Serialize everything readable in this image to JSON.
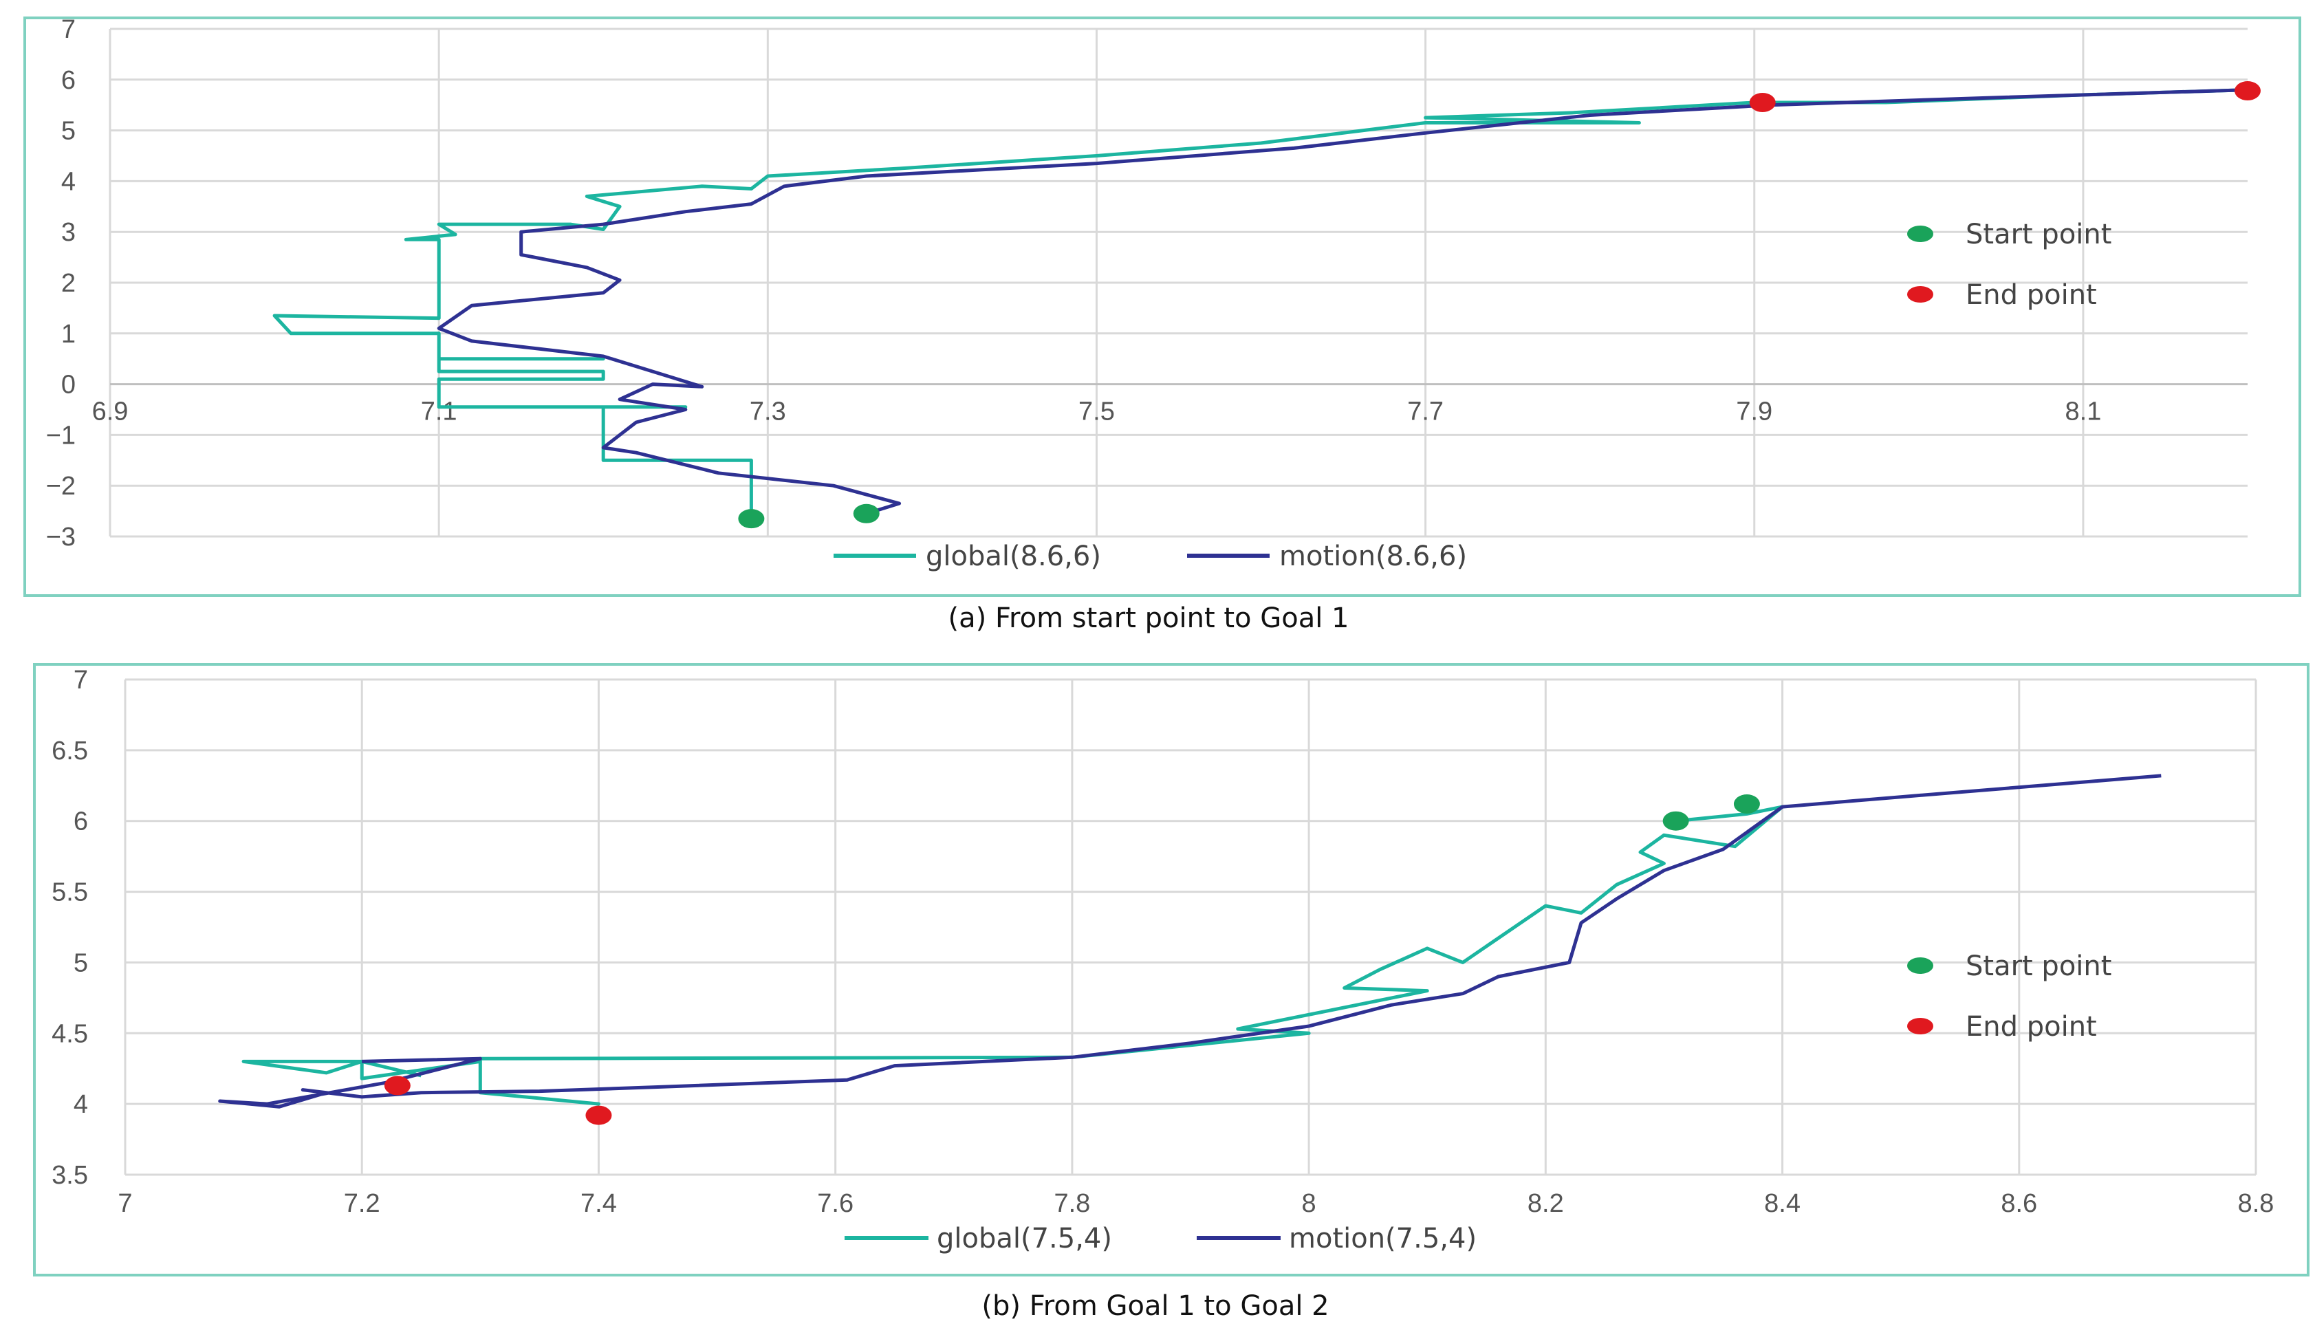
{
  "colors": {
    "global": "#1cb5a0",
    "motion": "#2e3192",
    "start": "#1aa35a",
    "end": "#e0191f",
    "frame": "#7fd1c0"
  },
  "chart_data": [
    {
      "type": "line",
      "caption": "(a) From start point to Goal 1",
      "xlim": [
        6.9,
        8.2
      ],
      "ylim": [
        -3,
        7
      ],
      "xticks": [
        "6.9",
        "7.1",
        "7.3",
        "7.5",
        "7.7",
        "7.9",
        "8.1"
      ],
      "yticks": [
        "7",
        "6",
        "5",
        "4",
        "3",
        "2",
        "1",
        "0",
        "−1",
        "−2",
        "−3"
      ],
      "grid": true,
      "legend_position": "right",
      "marker_legend": [
        {
          "label": "Start point",
          "color": "#1aa35a"
        },
        {
          "label": "End point",
          "color": "#e0191f"
        }
      ],
      "series": [
        {
          "name": "global(8.6,6)",
          "points": [
            [
              7.29,
              -2.65
            ],
            [
              7.29,
              -1.5
            ],
            [
              7.2,
              -1.5
            ],
            [
              7.2,
              -0.45
            ],
            [
              7.25,
              -0.45
            ],
            [
              7.1,
              -0.45
            ],
            [
              7.1,
              0.1
            ],
            [
              7.2,
              0.1
            ],
            [
              7.2,
              0.25
            ],
            [
              7.1,
              0.25
            ],
            [
              7.1,
              0.5
            ],
            [
              7.2,
              0.5
            ],
            [
              7.1,
              0.5
            ],
            [
              7.1,
              1.0
            ],
            [
              7.01,
              1.0
            ],
            [
              7.0,
              1.35
            ],
            [
              7.1,
              1.3
            ],
            [
              7.1,
              2.85
            ],
            [
              7.08,
              2.85
            ],
            [
              7.11,
              2.95
            ],
            [
              7.1,
              3.15
            ],
            [
              7.18,
              3.15
            ],
            [
              7.2,
              3.05
            ],
            [
              7.21,
              3.5
            ],
            [
              7.19,
              3.7
            ],
            [
              7.26,
              3.9
            ],
            [
              7.29,
              3.85
            ],
            [
              7.3,
              4.1
            ],
            [
              7.38,
              4.25
            ],
            [
              7.5,
              4.5
            ],
            [
              7.6,
              4.75
            ],
            [
              7.7,
              5.15
            ],
            [
              7.83,
              5.15
            ],
            [
              7.7,
              5.25
            ],
            [
              7.79,
              5.35
            ],
            [
              7.9,
              5.55
            ],
            [
              7.98,
              5.55
            ],
            [
              8.1,
              5.7
            ],
            [
              8.2,
              5.8
            ]
          ]
        },
        {
          "name": "motion(8.6,6)",
          "points": [
            [
              7.36,
              -2.55
            ],
            [
              7.38,
              -2.35
            ],
            [
              7.34,
              -2.0
            ],
            [
              7.27,
              -1.75
            ],
            [
              7.22,
              -1.35
            ],
            [
              7.2,
              -1.25
            ],
            [
              7.22,
              -0.75
            ],
            [
              7.25,
              -0.5
            ],
            [
              7.21,
              -0.3
            ],
            [
              7.23,
              0.0
            ],
            [
              7.26,
              -0.05
            ],
            [
              7.24,
              0.15
            ],
            [
              7.2,
              0.55
            ],
            [
              7.12,
              0.85
            ],
            [
              7.1,
              1.1
            ],
            [
              7.12,
              1.55
            ],
            [
              7.2,
              1.8
            ],
            [
              7.21,
              2.05
            ],
            [
              7.19,
              2.3
            ],
            [
              7.15,
              2.55
            ],
            [
              7.15,
              3.0
            ],
            [
              7.2,
              3.15
            ],
            [
              7.25,
              3.4
            ],
            [
              7.29,
              3.55
            ],
            [
              7.31,
              3.9
            ],
            [
              7.36,
              4.1
            ],
            [
              7.5,
              4.35
            ],
            [
              7.62,
              4.65
            ],
            [
              7.7,
              4.95
            ],
            [
              7.8,
              5.3
            ],
            [
              7.91,
              5.5
            ],
            [
              8.05,
              5.65
            ],
            [
              8.2,
              5.8
            ]
          ]
        }
      ],
      "start_points": [
        [
          7.29,
          -2.65
        ],
        [
          7.36,
          -2.55
        ]
      ],
      "end_points": [
        [
          7.905,
          5.55
        ],
        [
          8.2,
          5.78
        ]
      ]
    },
    {
      "type": "line",
      "caption": "(b) From Goal 1 to Goal 2",
      "xlim": [
        7.0,
        8.8
      ],
      "ylim": [
        3.5,
        7
      ],
      "xticks": [
        "7",
        "7.2",
        "7.4",
        "7.6",
        "7.8",
        "8",
        "8.2",
        "8.4",
        "8.6",
        "8.8"
      ],
      "yticks": [
        "7",
        "6.5",
        "6",
        "5.5",
        "5",
        "4.5",
        "4",
        "3.5"
      ],
      "grid": true,
      "legend_position": "right",
      "marker_legend": [
        {
          "label": "Start point",
          "color": "#1aa35a"
        },
        {
          "label": "End point",
          "color": "#e0191f"
        }
      ],
      "series": [
        {
          "name": "global(7.5,4)",
          "points": [
            [
              8.31,
              6.0
            ],
            [
              8.37,
              6.05
            ],
            [
              8.4,
              6.1
            ],
            [
              8.36,
              5.82
            ],
            [
              8.3,
              5.9
            ],
            [
              8.28,
              5.78
            ],
            [
              8.3,
              5.7
            ],
            [
              8.26,
              5.55
            ],
            [
              8.23,
              5.35
            ],
            [
              8.2,
              5.4
            ],
            [
              8.13,
              5.0
            ],
            [
              8.1,
              5.1
            ],
            [
              8.06,
              4.95
            ],
            [
              8.03,
              4.82
            ],
            [
              8.1,
              4.8
            ],
            [
              7.94,
              4.53
            ],
            [
              8.0,
              4.5
            ],
            [
              7.8,
              4.33
            ],
            [
              7.3,
              4.32
            ],
            [
              7.3,
              4.08
            ],
            [
              7.4,
              4.0
            ],
            [
              7.3,
              4.08
            ],
            [
              7.3,
              4.3
            ],
            [
              7.2,
              4.18
            ],
            [
              7.2,
              4.3
            ],
            [
              7.17,
              4.22
            ],
            [
              7.1,
              4.3
            ],
            [
              7.2,
              4.3
            ],
            [
              7.25,
              4.2
            ]
          ]
        },
        {
          "name": "motion(7.5,4)",
          "points": [
            [
              8.72,
              6.32
            ],
            [
              8.5,
              6.17
            ],
            [
              8.4,
              6.1
            ],
            [
              8.35,
              5.8
            ],
            [
              8.3,
              5.65
            ],
            [
              8.26,
              5.45
            ],
            [
              8.23,
              5.28
            ],
            [
              8.22,
              5.0
            ],
            [
              8.16,
              4.9
            ],
            [
              8.13,
              4.78
            ],
            [
              8.07,
              4.7
            ],
            [
              8.0,
              4.55
            ],
            [
              7.9,
              4.43
            ],
            [
              7.8,
              4.33
            ],
            [
              7.65,
              4.27
            ],
            [
              7.61,
              4.17
            ],
            [
              7.45,
              4.12
            ],
            [
              7.35,
              4.09
            ],
            [
              7.25,
              4.08
            ],
            [
              7.2,
              4.05
            ],
            [
              7.15,
              4.1
            ],
            [
              7.17,
              4.08
            ],
            [
              7.13,
              3.98
            ],
            [
              7.08,
              4.02
            ],
            [
              7.12,
              4.0
            ],
            [
              7.22,
              4.15
            ],
            [
              7.3,
              4.32
            ],
            [
              7.2,
              4.3
            ]
          ]
        }
      ],
      "start_points": [
        [
          8.31,
          6.0
        ],
        [
          8.37,
          6.12
        ]
      ],
      "end_points": [
        [
          7.23,
          4.13
        ],
        [
          7.4,
          3.92
        ]
      ]
    }
  ]
}
